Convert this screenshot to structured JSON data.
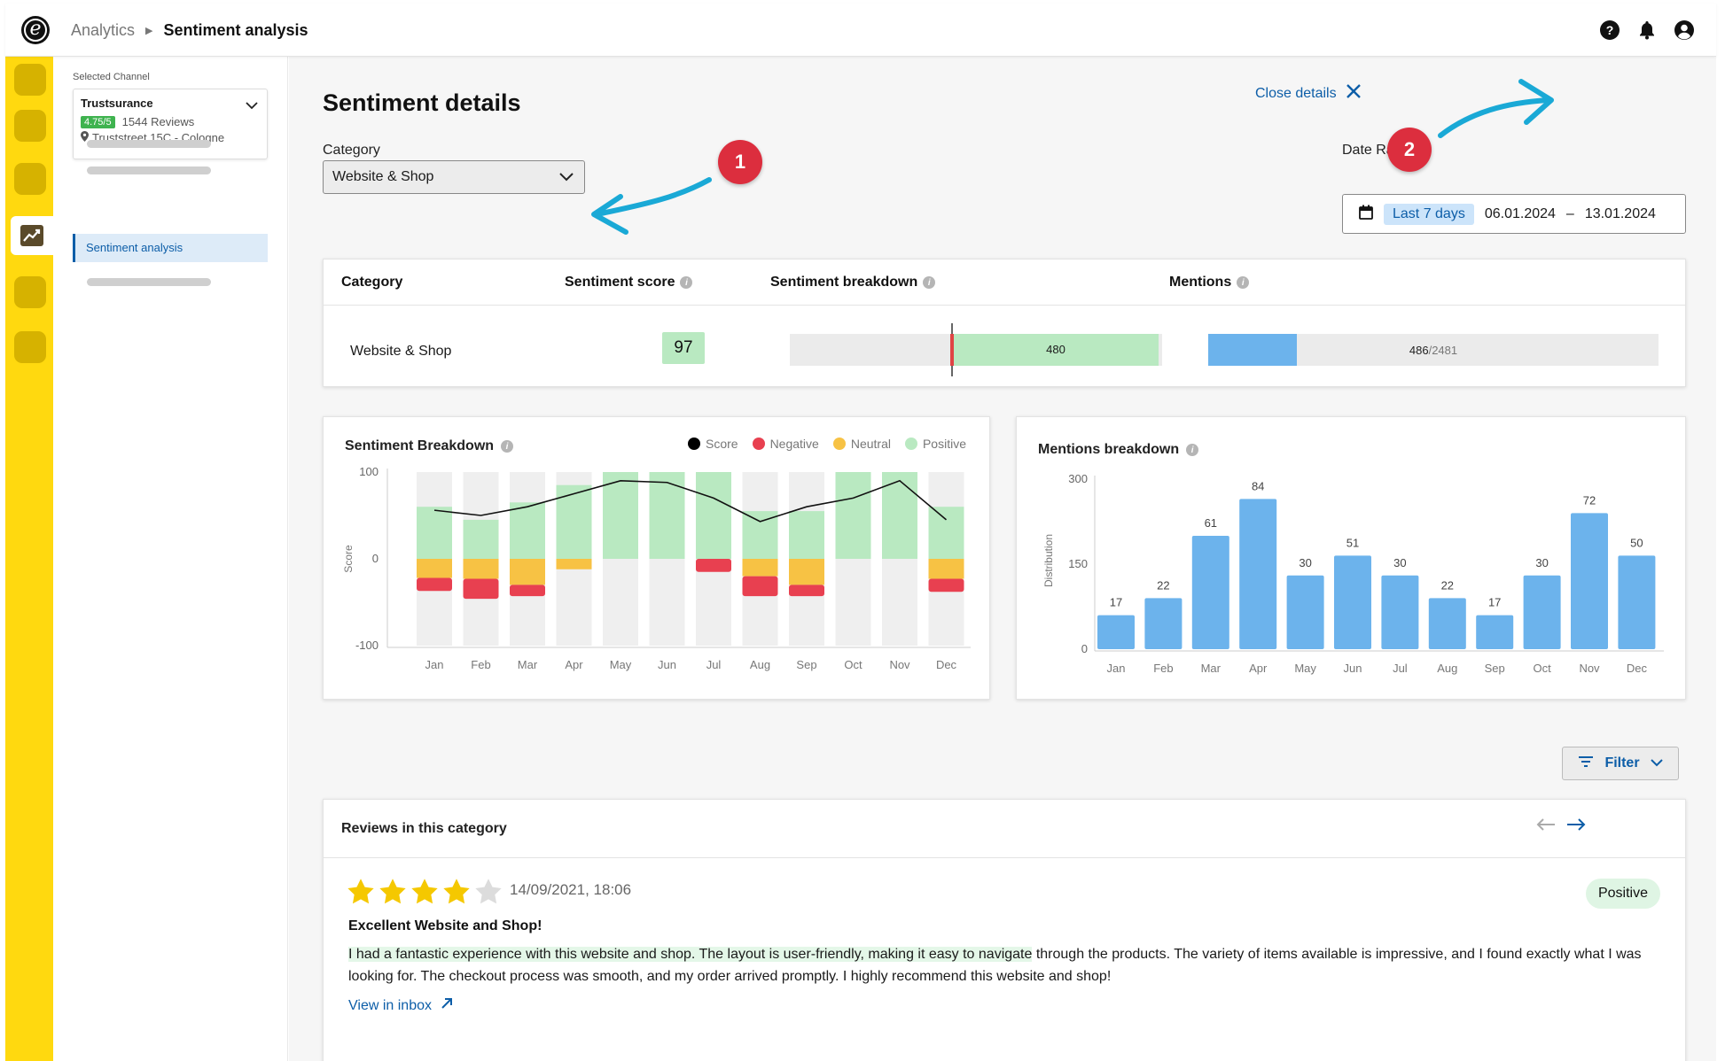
{
  "breadcrumb": {
    "parent": "Analytics",
    "current": "Sentiment analysis"
  },
  "channel": {
    "selected_label": "Selected Channel",
    "name": "Trustsurance",
    "rating": "4.75/5",
    "reviews": "1544 Reviews",
    "address": "Truststreet 15C - Cologne"
  },
  "nav": {
    "active_item": "Sentiment analysis"
  },
  "page": {
    "title": "Sentiment details",
    "close_label": "Close details"
  },
  "category_select": {
    "label": "Category",
    "value": "Website & Shop"
  },
  "date_range": {
    "label": "Date Range",
    "preset": "Last 7 days",
    "from": "06.01.2024",
    "dash": "–",
    "to": "13.01.2024"
  },
  "summary": {
    "headers": {
      "category": "Category",
      "score": "Sentiment score",
      "breakdown": "Sentiment breakdown",
      "mentions": "Mentions"
    },
    "row": {
      "category": "Website & Shop",
      "score": "97",
      "breakdown_value": "480",
      "mentions_value": "486",
      "mentions_total": "/2481",
      "mentions_fraction": 0.196
    }
  },
  "chart_data": [
    {
      "type": "bar",
      "title": "Sentiment Breakdown",
      "ylabel": "Score",
      "ylim": [
        -100,
        100
      ],
      "yticks": [
        "100",
        "0",
        "-100"
      ],
      "legend": [
        "Score",
        "Negative",
        "Neutral",
        "Positive"
      ],
      "colors": {
        "score": "#000000",
        "negative": "#e84050",
        "neutral": "#f7c244",
        "positive": "#b9e9c1",
        "track": "#efefef"
      },
      "categories": [
        "Jan",
        "Feb",
        "Mar",
        "Apr",
        "May",
        "Jun",
        "Jul",
        "Aug",
        "Sep",
        "Oct",
        "Nov",
        "Dec"
      ],
      "series": [
        {
          "name": "Positive",
          "values": [
            60,
            45,
            65,
            85,
            100,
            100,
            100,
            55,
            55,
            100,
            100,
            60
          ]
        },
        {
          "name": "Neutral",
          "values": [
            -22,
            -23,
            -30,
            -12,
            0,
            0,
            0,
            -20,
            -30,
            0,
            0,
            -23
          ]
        },
        {
          "name": "Negative",
          "values": [
            -15,
            -23,
            -13,
            0,
            0,
            0,
            -15,
            -23,
            -13,
            0,
            0,
            -15
          ]
        },
        {
          "name": "Score",
          "values": [
            56,
            50,
            60,
            75,
            90,
            88,
            70,
            43,
            60,
            70,
            90,
            45
          ]
        }
      ]
    },
    {
      "type": "bar",
      "title": "Mentions breakdown",
      "ylabel": "Distribution",
      "ylim": [
        0,
        300
      ],
      "yticks": [
        "300",
        "150",
        "0"
      ],
      "color": "#6cb3ec",
      "categories": [
        "Jan",
        "Feb",
        "Mar",
        "Apr",
        "May",
        "Jun",
        "Jul",
        "Aug",
        "Sep",
        "Oct",
        "Nov",
        "Dec"
      ],
      "values": [
        17,
        22,
        61,
        84,
        30,
        51,
        30,
        22,
        17,
        30,
        72,
        50
      ],
      "scale_values": [
        60,
        90,
        200,
        265,
        130,
        165,
        130,
        90,
        60,
        130,
        240,
        165
      ]
    }
  ],
  "filter": {
    "label": "Filter"
  },
  "reviews": {
    "title": "Reviews in this category",
    "items": [
      {
        "rating": 4,
        "max_rating": 5,
        "date": "14/09/2021, 18:06",
        "sentiment": "Positive",
        "headline": "Excellent Website and Shop!",
        "body_highlight": "I had a fantastic experience with this website and shop. The layout is user-friendly, making it easy to navigate",
        "body_rest": " through the products. The variety of items available is impressive, and I found exactly what I was looking for. The checkout process was smooth, and my order arrived promptly. I highly recommend this website and shop!",
        "link": "View in inbox"
      }
    ]
  },
  "annotations": [
    "1",
    "2"
  ]
}
